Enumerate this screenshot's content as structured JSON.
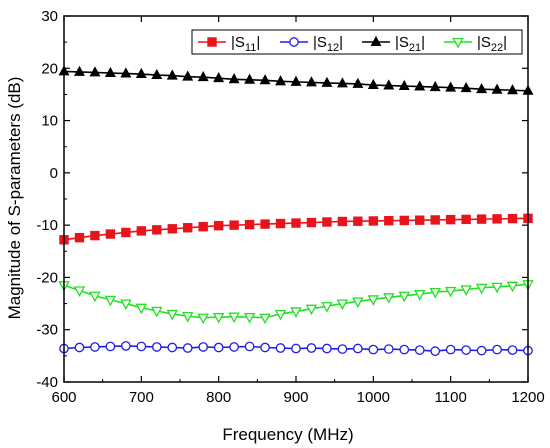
{
  "chart_data": {
    "type": "line",
    "xlabel": "Frequency (MHz)",
    "ylabel": "Magnitude of S-parameters (dB)",
    "xlim": [
      600,
      1200
    ],
    "ylim": [
      -40,
      30
    ],
    "xticks": [
      "600",
      "700",
      "800",
      "900",
      "1000",
      "1100",
      "1200"
    ],
    "yticks": [
      "-40",
      "-30",
      "-20",
      "-10",
      "0",
      "10",
      "20",
      "30"
    ],
    "grid": false,
    "legend_position": "top-right",
    "x": [
      600,
      620,
      640,
      660,
      680,
      700,
      720,
      740,
      760,
      780,
      800,
      820,
      840,
      860,
      880,
      900,
      920,
      940,
      960,
      980,
      1000,
      1020,
      1040,
      1060,
      1080,
      1100,
      1120,
      1140,
      1160,
      1180,
      1200
    ],
    "series": [
      {
        "name": "|S11|",
        "name_parts": [
          "|S",
          "11",
          "|"
        ],
        "color": "#e8141c",
        "marker": "square",
        "values": [
          -12.8,
          -12.4,
          -12.0,
          -11.7,
          -11.4,
          -11.1,
          -10.9,
          -10.7,
          -10.5,
          -10.3,
          -10.1,
          -10.0,
          -9.9,
          -9.8,
          -9.7,
          -9.6,
          -9.5,
          -9.4,
          -9.3,
          -9.25,
          -9.2,
          -9.15,
          -9.1,
          -9.05,
          -9.0,
          -8.95,
          -8.9,
          -8.85,
          -8.8,
          -8.75,
          -8.7
        ]
      },
      {
        "name": "|S12|",
        "name_parts": [
          "|S",
          "12",
          "|"
        ],
        "color": "#1e1ee6",
        "marker": "circle",
        "values": [
          -33.6,
          -33.4,
          -33.3,
          -33.2,
          -33.1,
          -33.2,
          -33.3,
          -33.4,
          -33.5,
          -33.3,
          -33.4,
          -33.3,
          -33.2,
          -33.4,
          -33.5,
          -33.6,
          -33.5,
          -33.6,
          -33.7,
          -33.6,
          -33.8,
          -33.7,
          -33.8,
          -33.9,
          -34.1,
          -33.8,
          -33.9,
          -34.0,
          -33.8,
          -33.9,
          -34.0
        ]
      },
      {
        "name": "|S21|",
        "name_parts": [
          "|S",
          "21",
          "|"
        ],
        "color": "#000000",
        "marker": "triangle-up",
        "values": [
          19.4,
          19.3,
          19.2,
          19.1,
          19.0,
          18.9,
          18.7,
          18.6,
          18.4,
          18.3,
          18.1,
          17.9,
          17.8,
          17.7,
          17.5,
          17.4,
          17.3,
          17.2,
          17.1,
          17.0,
          16.8,
          16.7,
          16.6,
          16.5,
          16.4,
          16.3,
          16.2,
          16.0,
          15.9,
          15.8,
          15.7
        ]
      },
      {
        "name": "|S22|",
        "name_parts": [
          "|S",
          "22",
          "|"
        ],
        "color": "#22e022",
        "marker": "triangle-down",
        "values": [
          -21.5,
          -22.5,
          -23.5,
          -24.3,
          -25.0,
          -25.8,
          -26.4,
          -27.0,
          -27.4,
          -27.7,
          -27.6,
          -27.5,
          -27.6,
          -27.7,
          -27.0,
          -26.5,
          -26.0,
          -25.5,
          -25.0,
          -24.6,
          -24.2,
          -23.8,
          -23.5,
          -23.2,
          -22.8,
          -22.6,
          -22.3,
          -22.0,
          -21.8,
          -21.6,
          -21.3
        ]
      }
    ]
  }
}
